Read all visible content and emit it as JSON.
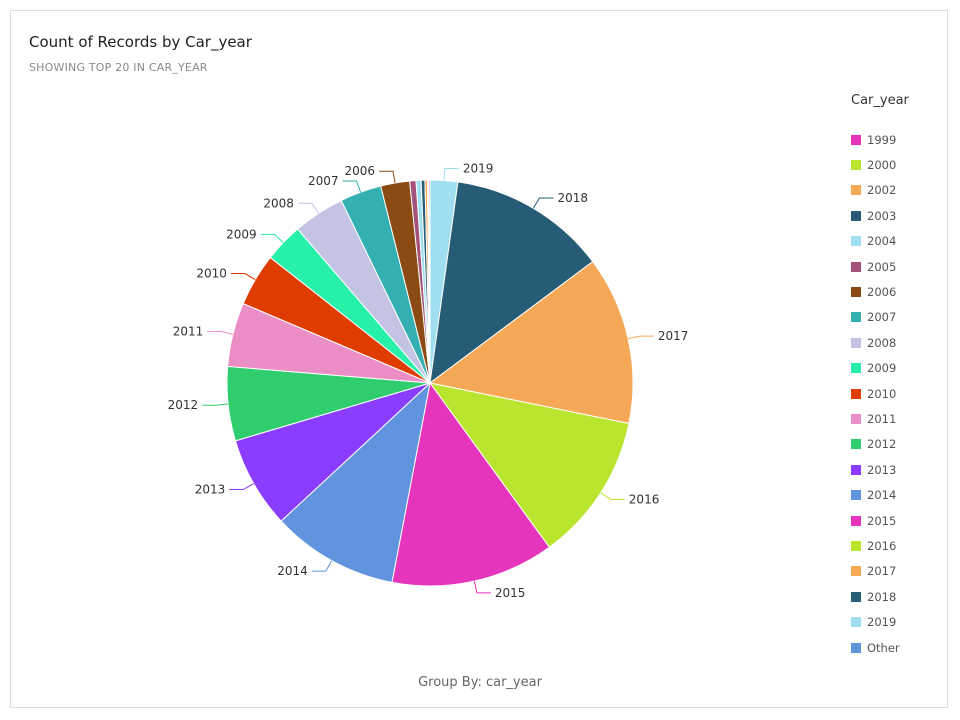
{
  "title": "Count of Records by Car_year",
  "subtitle": "SHOWING TOP 20 IN CAR_YEAR",
  "footer": "Group By: car_year",
  "chart_data": {
    "type": "pie",
    "title": "Count of Records by Car_year",
    "subtitle": "SHOWING TOP 20 IN CAR_YEAR",
    "legend_title": "Car_year",
    "legend_position": "right",
    "legend": [
      {
        "label": "1999",
        "color": "#e535bd"
      },
      {
        "label": "2000",
        "color": "#b9e52f"
      },
      {
        "label": "2002",
        "color": "#f5a856"
      },
      {
        "label": "2003",
        "color": "#275c77"
      },
      {
        "label": "2004",
        "color": "#a0dff0"
      },
      {
        "label": "2005",
        "color": "#a5527a"
      },
      {
        "label": "2006",
        "color": "#8b4b12"
      },
      {
        "label": "2007",
        "color": "#34b0b2"
      },
      {
        "label": "2008",
        "color": "#c3c4e4"
      },
      {
        "label": "2009",
        "color": "#27f1a9"
      },
      {
        "label": "2010",
        "color": "#df3c00"
      },
      {
        "label": "2011",
        "color": "#eb8ec5"
      },
      {
        "label": "2012",
        "color": "#2fcd6e"
      },
      {
        "label": "2013",
        "color": "#8a3cff"
      },
      {
        "label": "2014",
        "color": "#6094de"
      },
      {
        "label": "2015",
        "color": "#e535bd"
      },
      {
        "label": "2016",
        "color": "#b9e52f"
      },
      {
        "label": "2017",
        "color": "#f5a856"
      },
      {
        "label": "2018",
        "color": "#275c77"
      },
      {
        "label": "2019",
        "color": "#a0dff0"
      },
      {
        "label": "Other",
        "color": "#6094de"
      }
    ],
    "slices": [
      {
        "label": "2019",
        "value": 2.2,
        "color": "#a0dff0"
      },
      {
        "label": "2018",
        "value": 12.6,
        "color": "#275c77"
      },
      {
        "label": "2017",
        "value": 13.4,
        "color": "#f5a856"
      },
      {
        "label": "2016",
        "value": 11.8,
        "color": "#b9e52f"
      },
      {
        "label": "2015",
        "value": 13.0,
        "color": "#e535bd"
      },
      {
        "label": "2014",
        "value": 10.1,
        "color": "#6094de"
      },
      {
        "label": "2013",
        "value": 7.3,
        "color": "#8a3cff"
      },
      {
        "label": "2012",
        "value": 5.9,
        "color": "#2fcd6e"
      },
      {
        "label": "2011",
        "value": 5.1,
        "color": "#eb8ec5"
      },
      {
        "label": "2010",
        "value": 4.2,
        "color": "#df3c00"
      },
      {
        "label": "2009",
        "value": 3.1,
        "color": "#27f1a9"
      },
      {
        "label": "2008",
        "value": 4.1,
        "color": "#c3c4e4"
      },
      {
        "label": "2007",
        "value": 3.3,
        "color": "#34b0b2"
      },
      {
        "label": "2006",
        "value": 2.3,
        "color": "#8b4b12"
      },
      {
        "label": "2005",
        "value": 0.5,
        "color": "#a5527a"
      },
      {
        "label": "2004",
        "value": 0.4,
        "color": "#a0dff0"
      },
      {
        "label": "2003",
        "value": 0.3,
        "color": "#275c77"
      },
      {
        "label": "2002",
        "value": 0.2,
        "color": "#f5a856"
      },
      {
        "label": "2000",
        "value": 0.1,
        "color": "#b9e52f"
      },
      {
        "label": "1999",
        "value": 0.1,
        "color": "#e535bd"
      }
    ],
    "labeled_slices": [
      "2019",
      "2018",
      "2017",
      "2016",
      "2015",
      "2014",
      "2013",
      "2012",
      "2011",
      "2010",
      "2009",
      "2008",
      "2007",
      "2006"
    ]
  }
}
